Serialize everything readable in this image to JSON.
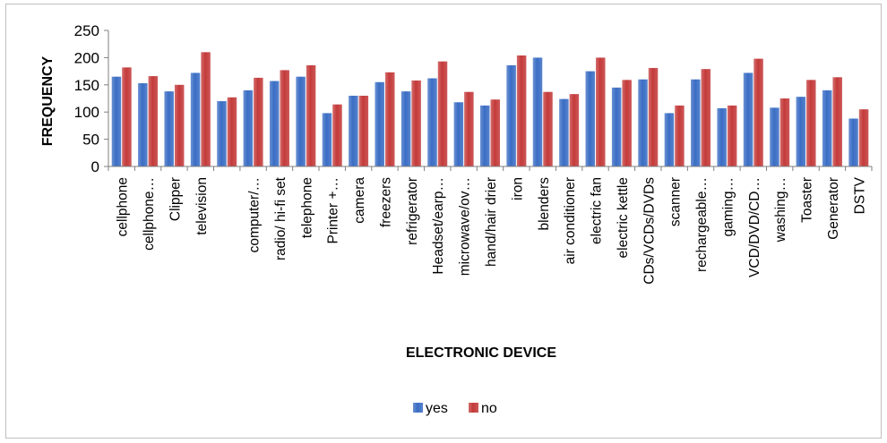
{
  "chart_data": {
    "type": "bar",
    "title": "",
    "xlabel": "ELECTRONIC DEVICE",
    "ylabel": "FREQUENCY",
    "ylim": [
      0,
      250
    ],
    "yticks": [
      0,
      50,
      100,
      150,
      200,
      250
    ],
    "grid": false,
    "legend_position": "bottom",
    "categories": [
      "cellphone",
      "cellphone…",
      "Clipper",
      "television",
      "",
      "computer/…",
      "radio/ hi-fi set",
      "telephone",
      "Printer +…",
      "camera",
      "freezers",
      "refrigerator",
      "Headset/earp…",
      "microwave/ov…",
      "hand/hair drier",
      "iron",
      "blenders",
      "air conditioner",
      "electric fan",
      "electric kettle",
      "CDs/VCDs/DVDs",
      "scanner",
      "rechargeable…",
      "gaming…",
      "VCD/DVD/CD…",
      "washing…",
      "Toaster",
      "Generator",
      "DSTV"
    ],
    "series": [
      {
        "name": "yes",
        "color": "#3a6dc4",
        "values": [
          165,
          153,
          138,
          172,
          120,
          140,
          157,
          165,
          98,
          130,
          155,
          138,
          162,
          118,
          112,
          186,
          200,
          124,
          175,
          145,
          160,
          98,
          160,
          107,
          172,
          108,
          128,
          140,
          88
        ]
      },
      {
        "name": "no",
        "color": "#c43a3a",
        "values": [
          182,
          166,
          150,
          210,
          127,
          163,
          177,
          186,
          114,
          130,
          173,
          158,
          193,
          137,
          123,
          204,
          137,
          133,
          200,
          159,
          181,
          112,
          179,
          112,
          198,
          125,
          159,
          164,
          105
        ]
      }
    ]
  }
}
